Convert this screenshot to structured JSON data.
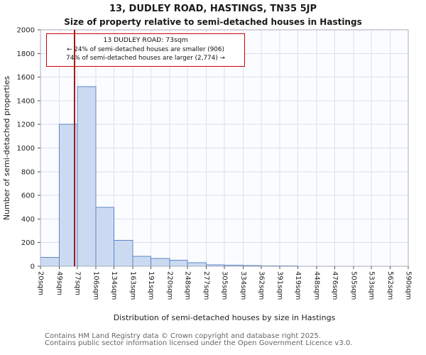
{
  "chart_data": {
    "type": "bar",
    "title": "13, DUDLEY ROAD, HASTINGS, TN35 5JP",
    "subtitle": "Size of property relative to semi-detached houses in Hastings",
    "xlabel": "Distribution of semi-detached houses by size in Hastings",
    "ylabel": "Number of semi-detached properties",
    "ylim": [
      0,
      2000
    ],
    "ytick_step": 200,
    "grid": true,
    "legend": false,
    "bin_edges_sqm": [
      20,
      49,
      77,
      106,
      134,
      163,
      191,
      220,
      248,
      277,
      305,
      334,
      362,
      391,
      419,
      448,
      476,
      505,
      533,
      562,
      590
    ],
    "tick_labels": [
      "20sqm",
      "49sqm",
      "77sqm",
      "106sqm",
      "134sqm",
      "163sqm",
      "191sqm",
      "220sqm",
      "248sqm",
      "277sqm",
      "305sqm",
      "334sqm",
      "362sqm",
      "391sqm",
      "419sqm",
      "448sqm",
      "476sqm",
      "505sqm",
      "533sqm",
      "562sqm",
      "590sqm"
    ],
    "values": [
      75,
      1200,
      1520,
      500,
      220,
      85,
      65,
      50,
      30,
      12,
      8,
      5,
      4,
      3,
      0,
      0,
      0,
      0,
      0,
      0
    ],
    "marker_value_sqm": 73,
    "annotation": {
      "line1": "13 DUDLEY ROAD: 73sqm",
      "line2": "← 24% of semi-detached houses are smaller (906)",
      "line3": "74% of semi-detached houses are larger (2,774) →"
    },
    "colors": {
      "bar_fill": "#ccdaf1",
      "bar_edge": "#5b87c7",
      "marker_line": "#9e1a1a",
      "grid": "#d9e0f0",
      "annotation_border": "#d40000"
    }
  },
  "footer": {
    "line1": "Contains HM Land Registry data © Crown copyright and database right 2025.",
    "line2": "Contains public sector information licensed under the Open Government Licence v3.0."
  }
}
